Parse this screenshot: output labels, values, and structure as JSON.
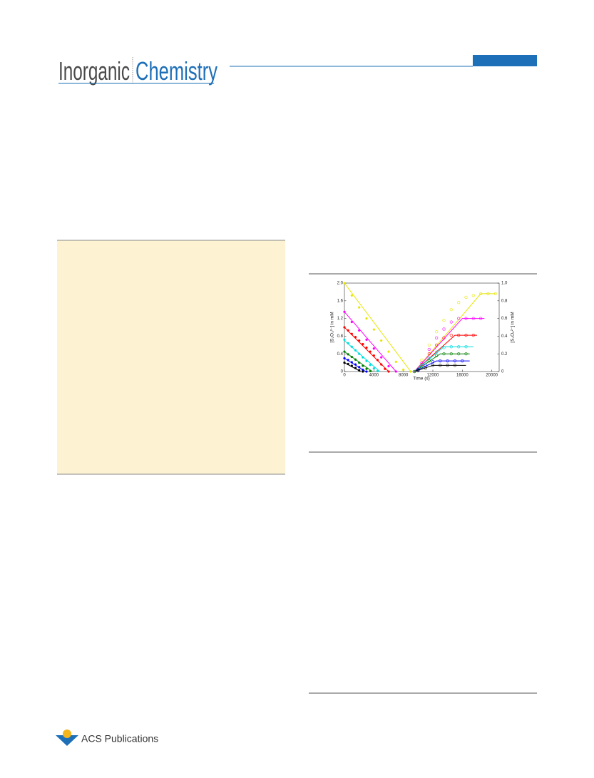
{
  "header": {
    "journal_first": "Inorganic",
    "journal_second": "Chemistry"
  },
  "chart_data": {
    "type": "scatter",
    "xlabel": "Time (s)",
    "ylabel": "[S₂O₃²⁻] in mM",
    "y2label": "[S₄O₆²⁻] in mM",
    "xlim": [
      0,
      21000
    ],
    "xticks": [
      0,
      4000,
      8000,
      12000,
      16000,
      20000
    ],
    "ylim": [
      0,
      2.0
    ],
    "yticks": [
      0,
      0.4,
      0.8,
      1.2,
      1.6,
      {
        "value": 2,
        "label": "2.0"
      }
    ],
    "y2lim": [
      0,
      1.0
    ],
    "y2ticks": [
      0,
      0.2,
      0.4,
      0.6,
      0.8,
      {
        "value": 1,
        "label": "1.0"
      }
    ],
    "grid": false,
    "series": [
      {
        "color": "#e6e600",
        "mode": "line",
        "x": [
          0,
          9000
        ],
        "values": [
          2.0,
          0
        ]
      },
      {
        "color": "#ff00ff",
        "mode": "line",
        "x": [
          0,
          7000
        ],
        "values": [
          1.35,
          0
        ]
      },
      {
        "color": "#ff0000",
        "mode": "line",
        "x": [
          0,
          6000
        ],
        "values": [
          1.0,
          0
        ]
      },
      {
        "color": "#00dede",
        "mode": "line",
        "x": [
          0,
          4800
        ],
        "values": [
          0.7,
          0
        ]
      },
      {
        "color": "#008000",
        "mode": "line",
        "x": [
          0,
          3800
        ],
        "values": [
          0.45,
          0
        ]
      },
      {
        "color": "#0000ff",
        "mode": "line",
        "x": [
          0,
          2900
        ],
        "values": [
          0.3,
          0
        ]
      },
      {
        "color": "#000000",
        "mode": "line",
        "x": [
          0,
          2200
        ],
        "values": [
          0.2,
          0
        ]
      },
      {
        "color": "#e6e600",
        "mode": "filled",
        "x": [
          0,
          1000,
          2000,
          3000,
          4000,
          5000,
          6000,
          7000,
          8000,
          9000
        ],
        "values": [
          2.0,
          1.72,
          1.45,
          1.2,
          0.95,
          0.7,
          0.45,
          0.22,
          0.04,
          0
        ]
      },
      {
        "color": "#ff00ff",
        "mode": "filled",
        "x": [
          0,
          1000,
          2000,
          3000,
          4000,
          5000,
          6000,
          7000
        ],
        "values": [
          1.35,
          1.12,
          0.93,
          0.72,
          0.52,
          0.32,
          0.12,
          0
        ]
      },
      {
        "color": "#ff0000",
        "mode": "filled",
        "x": [
          0,
          500,
          1000,
          1500,
          2000,
          2500,
          3000,
          3500,
          4000,
          4500,
          5000,
          5500,
          6000
        ],
        "values": [
          1.0,
          0.93,
          0.85,
          0.78,
          0.7,
          0.62,
          0.54,
          0.45,
          0.36,
          0.26,
          0.16,
          0.06,
          0
        ]
      },
      {
        "color": "#00dede",
        "mode": "filled",
        "x": [
          0,
          500,
          1000,
          1500,
          2000,
          2500,
          3000,
          3500,
          4000,
          4500
        ],
        "values": [
          0.72,
          0.64,
          0.56,
          0.48,
          0.4,
          0.32,
          0.24,
          0.15,
          0.07,
          0.01
        ]
      },
      {
        "color": "#008000",
        "mode": "filled",
        "x": [
          0,
          500,
          1000,
          1500,
          2000,
          2500,
          3000,
          3500
        ],
        "values": [
          0.45,
          0.39,
          0.33,
          0.27,
          0.2,
          0.13,
          0.06,
          0.01
        ]
      },
      {
        "color": "#0000ff",
        "mode": "filled",
        "x": [
          0,
          500,
          1000,
          1500,
          2000,
          2500,
          3000
        ],
        "values": [
          0.3,
          0.26,
          0.21,
          0.16,
          0.1,
          0.04,
          0
        ]
      },
      {
        "color": "#000000",
        "mode": "filled",
        "x": [
          0,
          500,
          1000,
          1500,
          2000,
          2500
        ],
        "values": [
          0.2,
          0.17,
          0.13,
          0.08,
          0.03,
          0
        ]
      },
      {
        "color": "#e6e600",
        "mode": "line",
        "axis": "y2",
        "x": [
          9500,
          18500,
          20500
        ],
        "values": [
          0,
          0.88,
          0.88
        ]
      },
      {
        "color": "#ff00ff",
        "mode": "line",
        "axis": "y2",
        "x": [
          9500,
          16000,
          19000
        ],
        "values": [
          0,
          0.6,
          0.6
        ]
      },
      {
        "color": "#ff0000",
        "mode": "line",
        "axis": "y2",
        "x": [
          9500,
          15000,
          18000
        ],
        "values": [
          0,
          0.41,
          0.41
        ]
      },
      {
        "color": "#00dede",
        "mode": "line",
        "axis": "y2",
        "x": [
          9500,
          13500,
          17500
        ],
        "values": [
          0,
          0.28,
          0.28
        ]
      },
      {
        "color": "#008000",
        "mode": "line",
        "axis": "y2",
        "x": [
          9500,
          13000,
          17000
        ],
        "values": [
          0,
          0.2,
          0.2
        ]
      },
      {
        "color": "#0000ff",
        "mode": "line",
        "axis": "y2",
        "x": [
          9500,
          12500,
          17000
        ],
        "values": [
          0,
          0.12,
          0.12
        ]
      },
      {
        "color": "#000000",
        "mode": "line",
        "axis": "y2",
        "x": [
          9500,
          12000,
          16500
        ],
        "values": [
          0,
          0.07,
          0.07
        ]
      },
      {
        "color": "#e6e600",
        "mode": "open",
        "axis": "y2",
        "x": [
          9500,
          10500,
          11500,
          12500,
          13500,
          14500,
          15500,
          16500,
          17500,
          18500,
          19500,
          20500
        ],
        "values": [
          0,
          0.13,
          0.3,
          0.45,
          0.58,
          0.7,
          0.78,
          0.84,
          0.86,
          0.88,
          0.88,
          0.88
        ]
      },
      {
        "color": "#ff00ff",
        "mode": "open",
        "axis": "y2",
        "x": [
          9500,
          10500,
          11500,
          12500,
          13500,
          14500,
          15500,
          16500,
          17500,
          18500
        ],
        "values": [
          0,
          0.1,
          0.25,
          0.38,
          0.48,
          0.56,
          0.6,
          0.6,
          0.6,
          0.6
        ]
      },
      {
        "color": "#ff0000",
        "mode": "open",
        "axis": "y2",
        "x": [
          9500,
          10500,
          11500,
          12500,
          13500,
          14500,
          15500,
          16500,
          17500
        ],
        "values": [
          0,
          0.08,
          0.2,
          0.3,
          0.38,
          0.41,
          0.41,
          0.41,
          0.41
        ]
      },
      {
        "color": "#00dede",
        "mode": "open",
        "axis": "y2",
        "x": [
          9500,
          10500,
          11500,
          12500,
          13500,
          14500,
          15500,
          16500
        ],
        "values": [
          0,
          0.07,
          0.15,
          0.22,
          0.27,
          0.28,
          0.28,
          0.28
        ]
      },
      {
        "color": "#008000",
        "mode": "open",
        "axis": "y2",
        "x": [
          9500,
          10500,
          11500,
          12500,
          13500,
          14500,
          15500,
          16500
        ],
        "values": [
          0,
          0.05,
          0.12,
          0.18,
          0.2,
          0.2,
          0.2,
          0.2
        ]
      },
      {
        "color": "#0000ff",
        "mode": "open",
        "axis": "y2",
        "x": [
          10000,
          11000,
          12000,
          13000,
          14000,
          15000,
          16000
        ],
        "values": [
          0.02,
          0.07,
          0.11,
          0.12,
          0.12,
          0.12,
          0.12
        ]
      },
      {
        "color": "#000000",
        "mode": "open",
        "axis": "y2",
        "x": [
          10000,
          11000,
          12000,
          13000,
          14000,
          15000
        ],
        "values": [
          0.01,
          0.04,
          0.07,
          0.07,
          0.07,
          0.07
        ]
      }
    ]
  },
  "footer": {
    "publisher": "ACS Publications"
  }
}
